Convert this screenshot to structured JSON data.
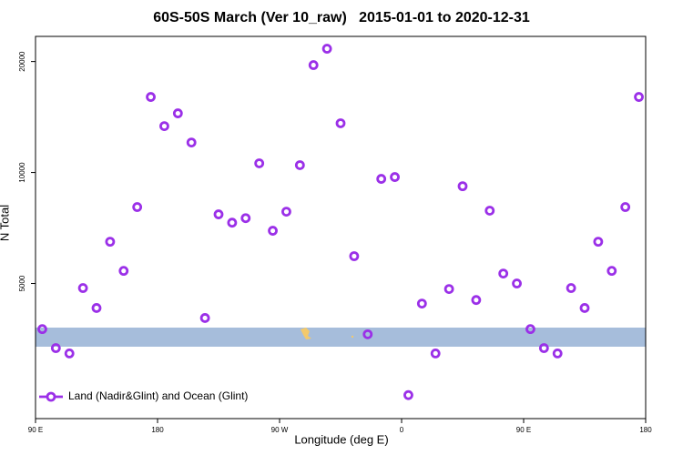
{
  "chart_data": {
    "type": "scatter",
    "title": "60S-50S March (Ver 10_raw)   2015-01-01 to 2020-12-31",
    "x_label": "Longitude (deg E)",
    "y_label": "N Total",
    "x": [
      95,
      105,
      115,
      125,
      135,
      145,
      155,
      165,
      175,
      185,
      195,
      205,
      215,
      225,
      235,
      245,
      255,
      265,
      275,
      285,
      295,
      305,
      315,
      325,
      335,
      345,
      355,
      365,
      375,
      385,
      395,
      405,
      415,
      425,
      435,
      445,
      455,
      465,
      475,
      485,
      495,
      505,
      515,
      525,
      535
    ],
    "series": [
      {
        "name": "Land (Nadir&Glint) and Ocean (Glint)",
        "color": "#9b30e8",
        "values": [
          3760,
          3340,
          3230,
          4860,
          4290,
          6490,
          5410,
          8060,
          16030,
          13360,
          14470,
          12060,
          4030,
          7700,
          7310,
          7520,
          10590,
          6950,
          7830,
          10470,
          19560,
          21670,
          13600,
          5930,
          3640,
          9610,
          9720,
          2490,
          4410,
          3230,
          4830,
          9180,
          4510,
          7880,
          5320,
          5000,
          3760,
          3340,
          3230,
          4860,
          4290,
          6490,
          5410,
          8060,
          16030
        ]
      }
    ],
    "xlim": [
      90,
      540
    ],
    "xticks": [
      {
        "value": 90,
        "label": "90 E"
      },
      180,
      {
        "value": 270,
        "label": "90 W"
      },
      {
        "value": 360,
        "label": "0"
      },
      {
        "value": 450,
        "label": "90 E"
      },
      {
        "value": 540,
        "label": "180"
      }
    ],
    "ylim": [
      2150,
      23400
    ],
    "yticks": [
      5000,
      10000,
      20000
    ],
    "ylog": true,
    "legend": "bottom-left"
  }
}
